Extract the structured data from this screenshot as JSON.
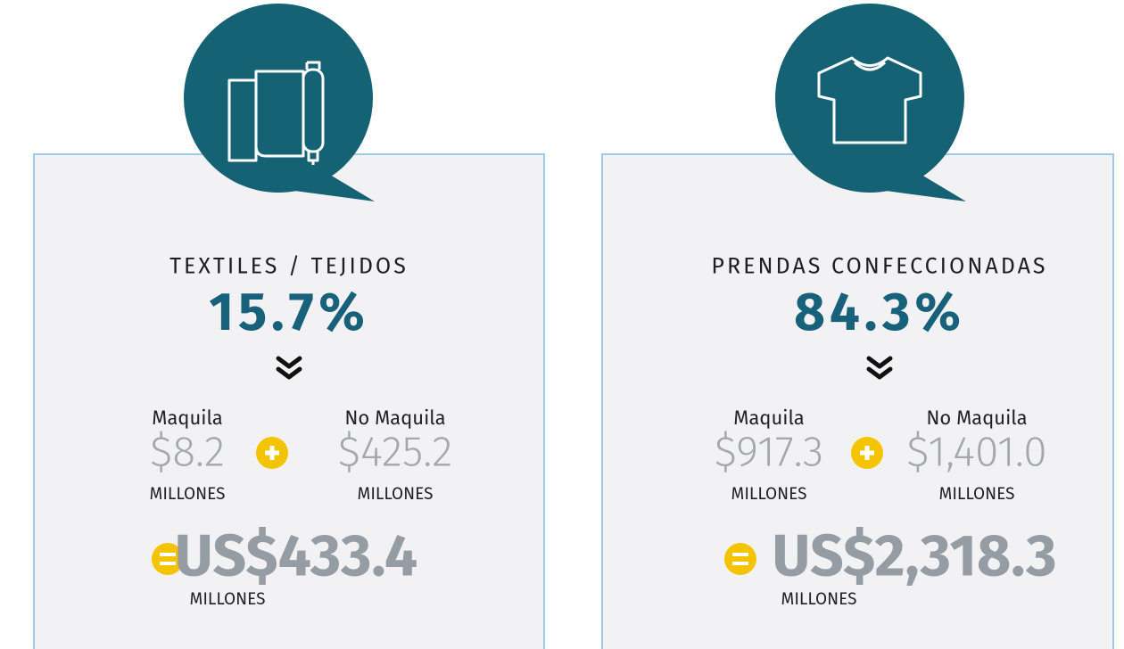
{
  "panels": [
    {
      "title": "TEXTILES / TEJIDOS",
      "percent": "15.7%",
      "maquila_label": "Maquila",
      "maquila_value": "$8.2",
      "maquila_unit": "MILLONES",
      "no_maquila_label": "No Maquila",
      "no_maquila_value": "$425.2",
      "no_maquila_unit": "MILLONES",
      "total": "US$433.4",
      "total_unit": "MILLONES"
    },
    {
      "title": "PRENDAS CONFECCIONADAS",
      "percent": "84.3%",
      "maquila_label": "Maquila",
      "maquila_value": "$917.3",
      "maquila_unit": "MILLONES",
      "no_maquila_label": "No Maquila",
      "no_maquila_value": "$1,401.0",
      "no_maquila_unit": "MILLONES",
      "total": "US$2,318.3",
      "total_unit": "MILLONES"
    }
  ]
}
